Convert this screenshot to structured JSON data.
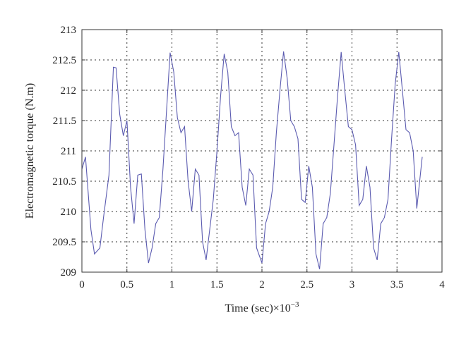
{
  "chart_data": {
    "type": "line",
    "title": "",
    "xlabel": "Time (sec)×10",
    "xlabel_exponent": "−3",
    "ylabel": "Electromagnetic torque (N.m)",
    "xlim": [
      0,
      4
    ],
    "ylim": [
      209,
      213
    ],
    "xticks": [
      "0",
      "0.5",
      "1",
      "1.5",
      "2",
      "2.5",
      "3",
      "3.5",
      "4"
    ],
    "yticks": [
      "209",
      "209.5",
      "210",
      "210.5",
      "211",
      "211.5",
      "212",
      "212.5",
      "213"
    ],
    "grid": true,
    "line_color": "#5b5bb0",
    "series": [
      {
        "x": [
          0,
          0.04,
          0.1,
          0.14,
          0.2,
          0.24,
          0.3,
          0.35,
          0.38,
          0.42,
          0.46,
          0.5,
          0.54,
          0.58,
          0.62,
          0.66,
          0.7,
          0.74,
          0.78,
          0.82,
          0.86,
          0.9,
          0.98,
          1.02,
          1.06,
          1.1,
          1.14,
          1.18,
          1.22,
          1.26,
          1.3,
          1.34,
          1.38,
          1.42,
          1.46,
          1.5,
          1.54,
          1.58,
          1.62,
          1.66,
          1.7,
          1.74,
          1.78,
          1.82,
          1.86,
          1.9,
          1.94,
          2.0,
          2.04,
          2.08,
          2.12,
          2.16,
          2.2,
          2.24,
          2.28,
          2.32,
          2.36,
          2.4,
          2.44,
          2.48,
          2.52,
          2.56,
          2.6,
          2.64,
          2.68,
          2.72,
          2.76,
          2.8,
          2.84,
          2.88,
          2.92,
          2.96,
          3.0,
          3.04,
          3.08,
          3.12,
          3.16,
          3.2,
          3.24,
          3.28,
          3.32,
          3.36,
          3.4,
          3.44,
          3.48,
          3.52,
          3.56,
          3.6,
          3.64,
          3.68,
          3.72,
          3.78
        ],
        "y": [
          210.7,
          210.9,
          209.7,
          209.3,
          209.4,
          209.9,
          210.6,
          212.38,
          212.37,
          211.6,
          211.25,
          211.5,
          210.4,
          209.8,
          210.6,
          210.62,
          209.7,
          209.15,
          209.4,
          209.8,
          209.9,
          210.7,
          212.62,
          212.3,
          211.55,
          211.3,
          211.4,
          210.5,
          210.0,
          210.7,
          210.6,
          209.5,
          209.2,
          209.7,
          210.2,
          211.0,
          211.9,
          212.6,
          212.3,
          211.4,
          211.25,
          211.3,
          210.4,
          210.1,
          210.7,
          210.6,
          209.4,
          209.15,
          209.8,
          210.0,
          210.4,
          211.3,
          212.0,
          212.64,
          212.2,
          211.5,
          211.4,
          211.2,
          210.2,
          210.15,
          210.75,
          210.4,
          209.3,
          209.05,
          209.8,
          209.9,
          210.3,
          211.1,
          211.9,
          212.63,
          212.0,
          211.4,
          211.35,
          211.1,
          210.1,
          210.2,
          210.75,
          210.4,
          209.4,
          209.2,
          209.8,
          209.9,
          210.2,
          211.2,
          212.1,
          212.63,
          212.0,
          211.35,
          211.3,
          211.0,
          210.05,
          210.9
        ]
      }
    ]
  }
}
